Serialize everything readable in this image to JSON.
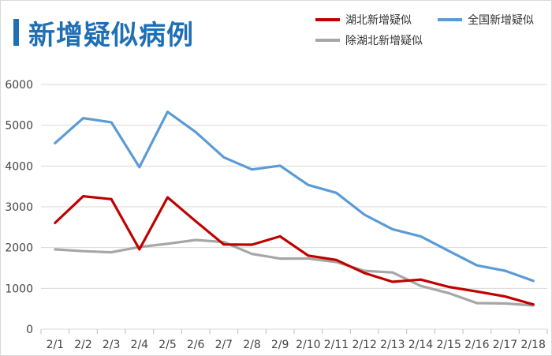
{
  "title": "新增疑似病例",
  "colors": {
    "hubei": "#c00000",
    "national": "#5b9bd5",
    "non_hubei": "#a6a6a6",
    "title": "#1f6fb5",
    "grid": "#d9d9d9"
  },
  "chart_data": {
    "type": "line",
    "title": "新增疑似病例",
    "x": [
      "2/1",
      "2/2",
      "2/3",
      "2/4",
      "2/5",
      "2/6",
      "2/7",
      "2/8",
      "2/9",
      "2/10",
      "2/11",
      "2/12",
      "2/13",
      "2/14",
      "2/15",
      "2/16",
      "2/17",
      "2/18"
    ],
    "ylim": [
      0,
      6000
    ],
    "yticks": [
      0,
      1000,
      2000,
      3000,
      4000,
      5000,
      6000
    ],
    "grid": true,
    "legend_position": "top-right",
    "series": [
      {
        "name": "湖北新增疑似",
        "color": "#c00000",
        "values": [
          2606,
          3260,
          3187,
          1957,
          3233,
          2646,
          2077,
          2071,
          2277,
          1803,
          1697,
          1377,
          1161,
          1216,
          1035,
          924,
          801,
          605
        ]
      },
      {
        "name": "全国新增疑似",
        "color": "#5b9bd5",
        "values": [
          4562,
          5173,
          5072,
          3971,
          5328,
          4833,
          4214,
          3916,
          4008,
          3536,
          3342,
          2807,
          2450,
          2277,
          1918,
          1563,
          1432,
          1185
        ]
      },
      {
        "name": "除湖北新增疑似",
        "color": "#a6a6a6",
        "values": [
          1956,
          1913,
          1885,
          2014,
          2095,
          2187,
          2137,
          1845,
          1731,
          1733,
          1645,
          1430,
          1389,
          1061,
          883,
          639,
          631,
          580
        ]
      }
    ]
  }
}
